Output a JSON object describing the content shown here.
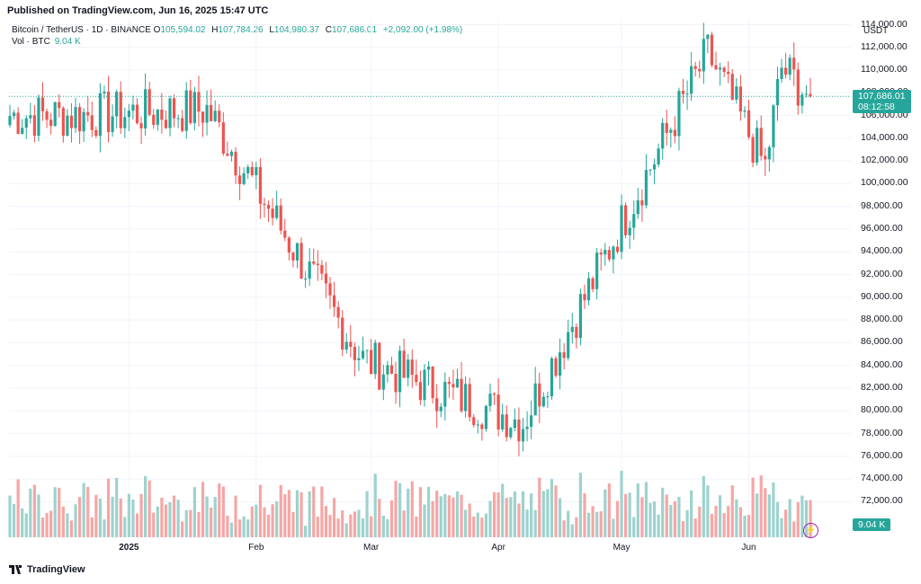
{
  "header": {
    "published": "Published on TradingView.com, Jun 16, 2025 15:47 UTC"
  },
  "legend": {
    "symbol": "Bitcoin / TetherUS · 1D · BINANCE",
    "open_key": "O",
    "open": "105,594.02",
    "high_key": "H",
    "high": "107,784.26",
    "low_key": "L",
    "low": "104,980.37",
    "close_key": "C",
    "close": "107,686.01",
    "change": "+2,092.00 (+1.98%)",
    "vol_label": "Vol · BTC",
    "vol_value": "9.04 K"
  },
  "axis": {
    "unit": "USDT",
    "price_badge": "107,686.01",
    "countdown_badge": "08:12:58",
    "volume_badge": "9.04 K"
  },
  "footer": {
    "brand": "TradingView"
  },
  "colors": {
    "up": "#26a69a",
    "down": "#ef5350",
    "up_vol": "#9dd2ce",
    "down_vol": "#f5a6a5"
  },
  "chart_data": {
    "type": "candlestick",
    "title": "Bitcoin / TetherUS · 1D · BINANCE",
    "y_unit": "USDT",
    "ylim": [
      72000,
      115000
    ],
    "y_ticks": [
      "114,000.00",
      "112,000.00",
      "110,000.00",
      "108,000.00",
      "106,000.00",
      "104,000.00",
      "102,000.00",
      "100,000.00",
      "98,000.00",
      "96,000.00",
      "94,000.00",
      "92,000.00",
      "90,000.00",
      "88,000.00",
      "86,000.00",
      "84,000.00",
      "82,000.00",
      "80,000.00",
      "78,000.00",
      "76,000.00",
      "74,000.00",
      "72,000.00"
    ],
    "x_ticks": [
      {
        "label": "2025",
        "date": "2025-01-01",
        "bold": true
      },
      {
        "label": "Feb",
        "date": "2025-02-01",
        "bold": false
      },
      {
        "label": "Mar",
        "date": "2025-03-01",
        "bold": false
      },
      {
        "label": "Apr",
        "date": "2025-04-01",
        "bold": false
      },
      {
        "label": "May",
        "date": "2025-05-01",
        "bold": false
      },
      {
        "label": "Jun",
        "date": "2025-06-01",
        "bold": false
      }
    ],
    "x_range": [
      "2024-12-03",
      "2025-06-16"
    ],
    "last_price": 107686.01,
    "grid": true,
    "key_points": [
      {
        "date": "2024-12-17",
        "close": 106000
      },
      {
        "date": "2025-01-20",
        "close": 106500
      },
      {
        "date": "2025-02-27",
        "close": 84500
      },
      {
        "date": "2025-04-07",
        "close": 79000
      },
      {
        "date": "2025-05-01",
        "close": 96500
      },
      {
        "date": "2025-05-22",
        "close": 111500
      },
      {
        "date": "2025-06-05",
        "close": 101500
      },
      {
        "date": "2025-06-09",
        "close": 110200
      },
      {
        "date": "2025-06-16",
        "close": 107686
      }
    ],
    "volume_unit": "BTC",
    "last_volume": "9.04 K"
  }
}
